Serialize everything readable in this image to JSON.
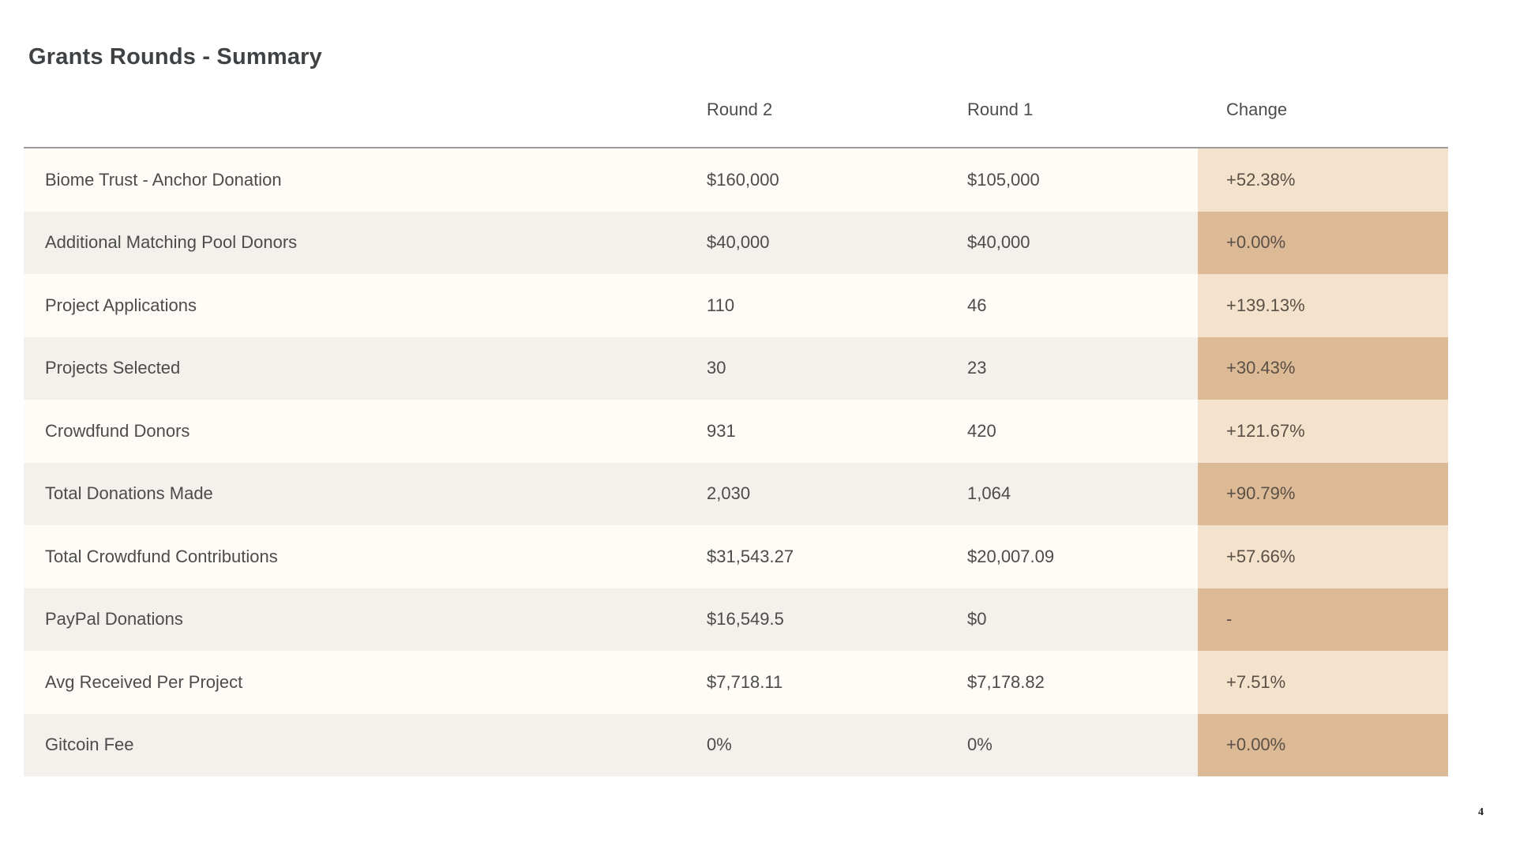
{
  "page": {
    "title": "Grants Rounds - Summary",
    "page_number": "4"
  },
  "table": {
    "columns": [
      "",
      "Round 2",
      "Round 1",
      "Change"
    ],
    "rows": [
      {
        "label": "Biome Trust - Anchor Donation",
        "round2": "$160,000",
        "round1": "$105,000",
        "change": "+52.38%"
      },
      {
        "label": "Additional Matching Pool Donors",
        "round2": "$40,000",
        "round1": "$40,000",
        "change": "+0.00%"
      },
      {
        "label": "Project Applications",
        "round2": "110",
        "round1": "46",
        "change": "+139.13%"
      },
      {
        "label": "Projects Selected",
        "round2": "30",
        "round1": "23",
        "change": "+30.43%"
      },
      {
        "label": "Crowdfund Donors",
        "round2": "931",
        "round1": "420",
        "change": "+121.67%"
      },
      {
        "label": "Total Donations Made",
        "round2": "2,030",
        "round1": "1,064",
        "change": "+90.79%"
      },
      {
        "label": "Total Crowdfund Contributions",
        "round2": "$31,543.27",
        "round1": "$20,007.09",
        "change": "+57.66%"
      },
      {
        "label": "PayPal Donations",
        "round2": "$16,549.5",
        "round1": "$0",
        "change": "-"
      },
      {
        "label": "Avg Received Per Project",
        "round2": "$7,718.11",
        "round1": "$7,178.82",
        "change": "+7.51%"
      },
      {
        "label": "Gitcoin Fee",
        "round2": "0%",
        "round1": "0%",
        "change": "+0.00%"
      }
    ],
    "colors": {
      "page_bg": "#FFFFFF",
      "row_odd_bg": "#FFFCF7",
      "row_even_bg": "#F4F0EB",
      "change_odd_bg": "#F4E2CD",
      "change_even_bg": "#DDBA96",
      "top_border": "#9B9B9B",
      "text": "#4C4C4C",
      "change_text": "#5A5046",
      "title_text": "#3F4245"
    }
  }
}
